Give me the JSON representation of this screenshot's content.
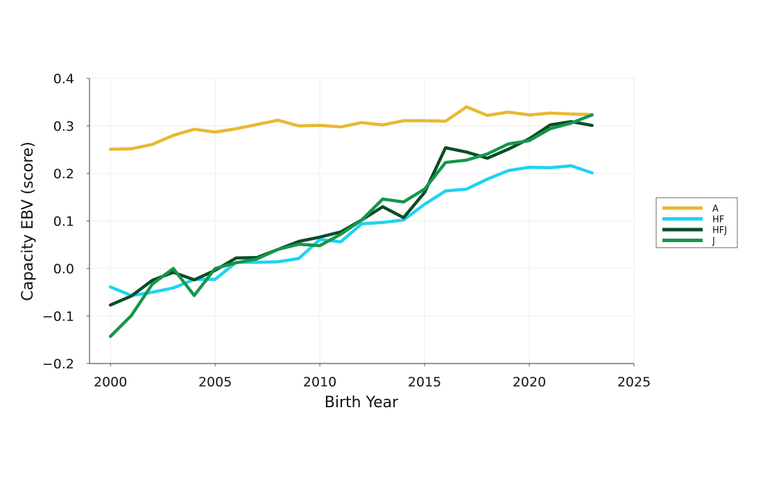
{
  "chart_data": {
    "type": "line",
    "title": "",
    "xlabel": "Birth Year",
    "ylabel": "Capacity EBV (score)",
    "xlim": [
      1999,
      2025
    ],
    "ylim": [
      -0.2,
      0.4
    ],
    "xticks": [
      2000,
      2005,
      2010,
      2015,
      2020,
      2025
    ],
    "yticks": [
      -0.2,
      -0.1,
      0.0,
      0.1,
      0.2,
      0.3,
      0.4
    ],
    "ytick_labels": [
      "−0.2",
      "−0.1",
      "0.0",
      "0.1",
      "0.2",
      "0.3",
      "0.4"
    ],
    "grid": true,
    "legend_position": "right",
    "x": [
      2000,
      2001,
      2002,
      2003,
      2004,
      2005,
      2006,
      2007,
      2008,
      2009,
      2010,
      2011,
      2012,
      2013,
      2014,
      2015,
      2016,
      2017,
      2018,
      2019,
      2020,
      2021,
      2022,
      2023
    ],
    "series": [
      {
        "name": "A",
        "color": "#E8B931",
        "values": [
          0.251,
          0.252,
          0.261,
          0.28,
          0.293,
          0.287,
          0.294,
          0.303,
          0.312,
          0.3,
          0.301,
          0.298,
          0.307,
          0.302,
          0.311,
          0.311,
          0.31,
          0.34,
          0.322,
          0.329,
          0.323,
          0.327,
          0.325,
          0.324
        ]
      },
      {
        "name": "HF",
        "color": "#1FD3F2",
        "values": [
          -0.039,
          -0.057,
          -0.05,
          -0.041,
          -0.023,
          -0.023,
          0.013,
          0.013,
          0.014,
          0.021,
          0.061,
          0.056,
          0.094,
          0.097,
          0.102,
          0.135,
          0.163,
          0.167,
          0.188,
          0.206,
          0.213,
          0.212,
          0.216,
          0.201
        ]
      },
      {
        "name": "HFJ",
        "color": "#0B4D26",
        "values": [
          -0.077,
          -0.058,
          -0.025,
          -0.008,
          -0.024,
          -0.004,
          0.022,
          0.023,
          0.04,
          0.057,
          0.066,
          0.077,
          0.102,
          0.13,
          0.107,
          0.16,
          0.254,
          0.245,
          0.232,
          0.251,
          0.273,
          0.302,
          0.309,
          0.301
        ]
      },
      {
        "name": "J",
        "color": "#13974A",
        "values": [
          -0.143,
          -0.099,
          -0.033,
          0.0,
          -0.057,
          0.0,
          0.012,
          0.02,
          0.04,
          0.051,
          0.048,
          0.072,
          0.102,
          0.146,
          0.14,
          0.167,
          0.223,
          0.228,
          0.241,
          0.262,
          0.269,
          0.294,
          0.306,
          0.323
        ]
      }
    ]
  }
}
